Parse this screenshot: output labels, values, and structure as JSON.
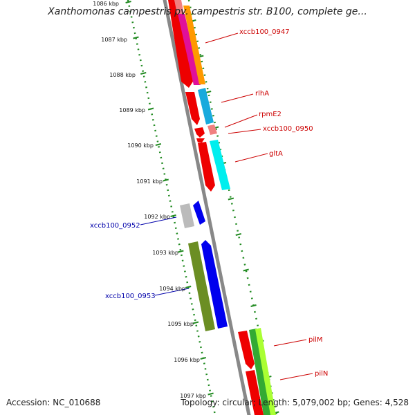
{
  "title": "Xanthomonas campestris pv. campestris str. B100, complete ge...",
  "footer": {
    "accession": "Accession: NC_010688",
    "summary": "Topology: circular; Length: 5,079,002 bp; Genes: 4,528"
  },
  "ruler": [
    "1086 kbp",
    "1087 kbp",
    "1088 kbp",
    "1089 kbp",
    "1090 kbp",
    "1091 kbp",
    "1092 kbp",
    "1093 kbp",
    "1094 kbp",
    "1095 kbp",
    "1096 kbp",
    "1097 kbp"
  ],
  "gene_labels": [
    {
      "id": "xccb100_0947",
      "text": "xccb100_0947",
      "color": "#cc0000"
    },
    {
      "id": "rlhA",
      "text": "rlhA",
      "color": "#cc0000"
    },
    {
      "id": "rpmE2",
      "text": "rpmE2",
      "color": "#cc0000"
    },
    {
      "id": "xccb100_0950",
      "text": "xccb100_0950",
      "color": "#cc0000"
    },
    {
      "id": "gltA",
      "text": "gltA",
      "color": "#cc0000"
    },
    {
      "id": "xccb100_0952",
      "text": "xccb100_0952",
      "color": "#0000aa"
    },
    {
      "id": "xccb100_0953",
      "text": "xccb100_0953",
      "color": "#0000aa"
    },
    {
      "id": "pilM",
      "text": "pilM",
      "color": "#cc0000"
    },
    {
      "id": "pilN",
      "text": "pilN",
      "color": "#cc0000"
    }
  ],
  "colors": {
    "backbone": "#888888",
    "ruler_dots": "#228b22",
    "feature_red": "#ee0000",
    "orange": "#ff9900",
    "magenta": "#e0109a",
    "light_blue": "#18aadd",
    "pink": "#f08080",
    "cyan": "#00eeee",
    "gray": "#bbbbbb",
    "blue": "#0000ee",
    "olive": "#6b8e23",
    "green": "#33aa33",
    "lime": "#aaff33"
  }
}
